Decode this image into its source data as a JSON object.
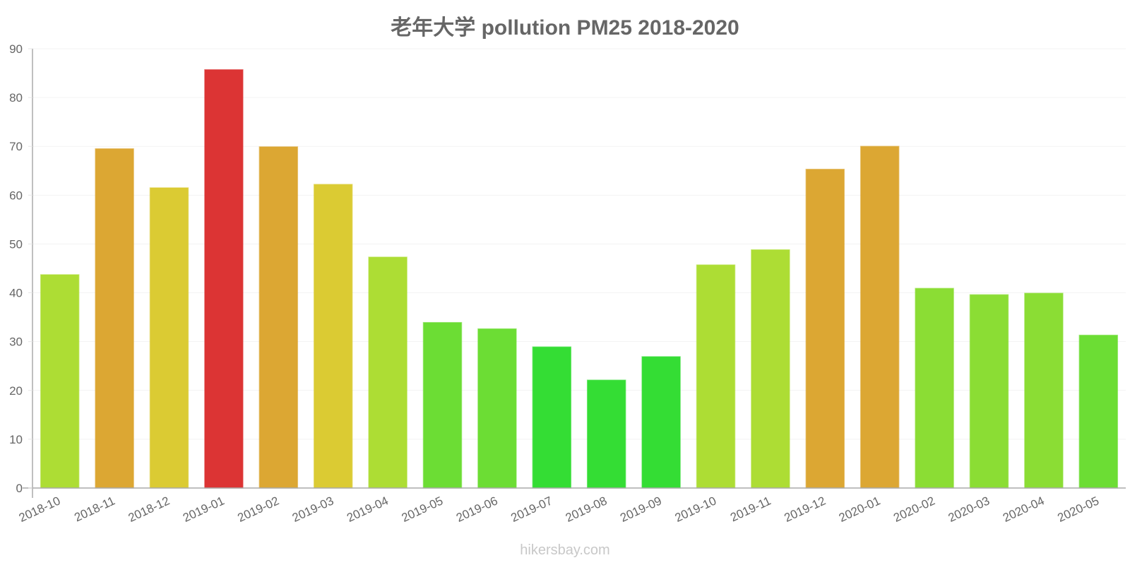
{
  "title": "老年大学 pollution PM25 2018-2020",
  "footer": "hikersbay.com",
  "chart_data": {
    "type": "bar",
    "title": "老年大学 pollution PM25 2018-2020",
    "xlabel": "",
    "ylabel": "",
    "ylim": [
      0,
      90
    ],
    "yticks": [
      0,
      10,
      20,
      30,
      40,
      50,
      60,
      70,
      80,
      90
    ],
    "grid": true,
    "legend": "none",
    "categories": [
      "2018-10",
      "2018-11",
      "2018-12",
      "2019-01",
      "2019-02",
      "2019-03",
      "2019-04",
      "2019-05",
      "2019-06",
      "2019-07",
      "2019-08",
      "2019-09",
      "2019-10",
      "2019-11",
      "2019-12",
      "2020-01",
      "2020-02",
      "2020-03",
      "2020-04",
      "2020-05"
    ],
    "values": [
      43.7,
      69.5,
      61.5,
      85.7,
      69.9,
      62.2,
      47.3,
      33.9,
      32.6,
      28.9,
      22.1,
      26.9,
      45.7,
      48.8,
      65.3,
      70.0,
      40.9,
      39.6,
      39.9,
      31.3
    ],
    "colors": [
      "#addd34",
      "#dca733",
      "#dbcb33",
      "#dc3434",
      "#dca733",
      "#dbcb33",
      "#addd34",
      "#6cdd34",
      "#6cdd34",
      "#34dd34",
      "#34dd34",
      "#34dd34",
      "#addd34",
      "#addd34",
      "#dca733",
      "#dca733",
      "#8bdd34",
      "#8bdd34",
      "#8bdd34",
      "#6cdd34"
    ]
  }
}
